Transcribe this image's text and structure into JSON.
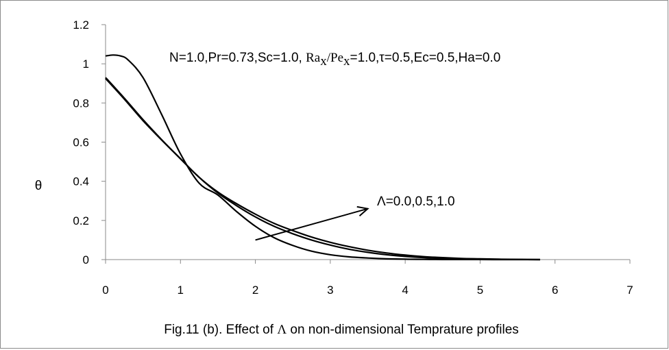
{
  "chart_data": {
    "type": "line",
    "title": "",
    "xlabel": "",
    "ylabel": "θ",
    "xlim": [
      0,
      7
    ],
    "ylim": [
      0,
      1.2
    ],
    "x_ticks": [
      "0",
      "1",
      "2",
      "3",
      "4",
      "5",
      "6",
      "7"
    ],
    "y_ticks": [
      "0",
      "0.2",
      "0.4",
      "0.6",
      "0.8",
      "1",
      "1.2"
    ],
    "grid": false,
    "legend": "none",
    "params": {
      "a": "N=1.0,Pr=0.73,Sc=1.0, ",
      "ra": "Ra",
      "ra_sub": "x",
      "slash": "/",
      "pe": "Pe",
      "pe_sub": "x",
      "b": "=1.0,τ=0.5,Ec=0.5,Ha=0.0"
    },
    "arrow_annotation": "Λ=0.0,0.5,1.0",
    "arrow": {
      "from": [
        2.0,
        0.1
      ],
      "to": [
        3.5,
        0.26
      ]
    },
    "series": [
      {
        "x": [
          0,
          0.25,
          0.5,
          0.75,
          1.0,
          1.25,
          1.5,
          1.75,
          2.0,
          2.25,
          2.5,
          2.75,
          3.0,
          3.25,
          3.5,
          3.75,
          4.0,
          4.25,
          4.5,
          4.75,
          5.0,
          5.25,
          5.5,
          5.8
        ],
        "values": [
          0.925,
          0.82,
          0.71,
          0.61,
          0.515,
          0.42,
          0.345,
          0.285,
          0.232,
          0.185,
          0.148,
          0.115,
          0.088,
          0.066,
          0.048,
          0.034,
          0.023,
          0.015,
          0.01,
          0.006,
          0.004,
          0.002,
          0.001,
          0.0
        ]
      },
      {
        "x": [
          0,
          0.25,
          0.5,
          0.75,
          1.0,
          1.25,
          1.5,
          1.75,
          2.0,
          2.25,
          2.5,
          2.75,
          3.0,
          3.25,
          3.5,
          3.75,
          4.0,
          4.25,
          4.5,
          4.75,
          5.0,
          5.25,
          5.5,
          5.8
        ],
        "values": [
          0.93,
          0.825,
          0.715,
          0.612,
          0.515,
          0.42,
          0.34,
          0.275,
          0.218,
          0.17,
          0.132,
          0.1,
          0.074,
          0.053,
          0.037,
          0.025,
          0.016,
          0.01,
          0.006,
          0.004,
          0.002,
          0.001,
          0.0005,
          0.0
        ]
      },
      {
        "x": [
          0,
          0.1,
          0.2,
          0.3,
          0.5,
          0.75,
          1.0,
          1.25,
          1.5,
          1.75,
          2.0,
          2.25,
          2.5,
          2.75,
          3.0,
          3.25,
          3.5,
          3.75,
          4.0,
          4.25,
          4.5,
          5.0,
          5.5,
          5.8
        ],
        "values": [
          1.04,
          1.045,
          1.04,
          1.02,
          0.93,
          0.74,
          0.54,
          0.39,
          0.33,
          0.245,
          0.17,
          0.112,
          0.072,
          0.043,
          0.025,
          0.014,
          0.008,
          0.004,
          0.002,
          0.001,
          0.0005,
          0.0002,
          0.0001,
          0.0
        ]
      }
    ]
  },
  "caption": {
    "pre": "Fig.11 (b). Effect of ",
    "symbol": "Λ",
    "post": " on non-dimensional  Temprature profiles"
  }
}
